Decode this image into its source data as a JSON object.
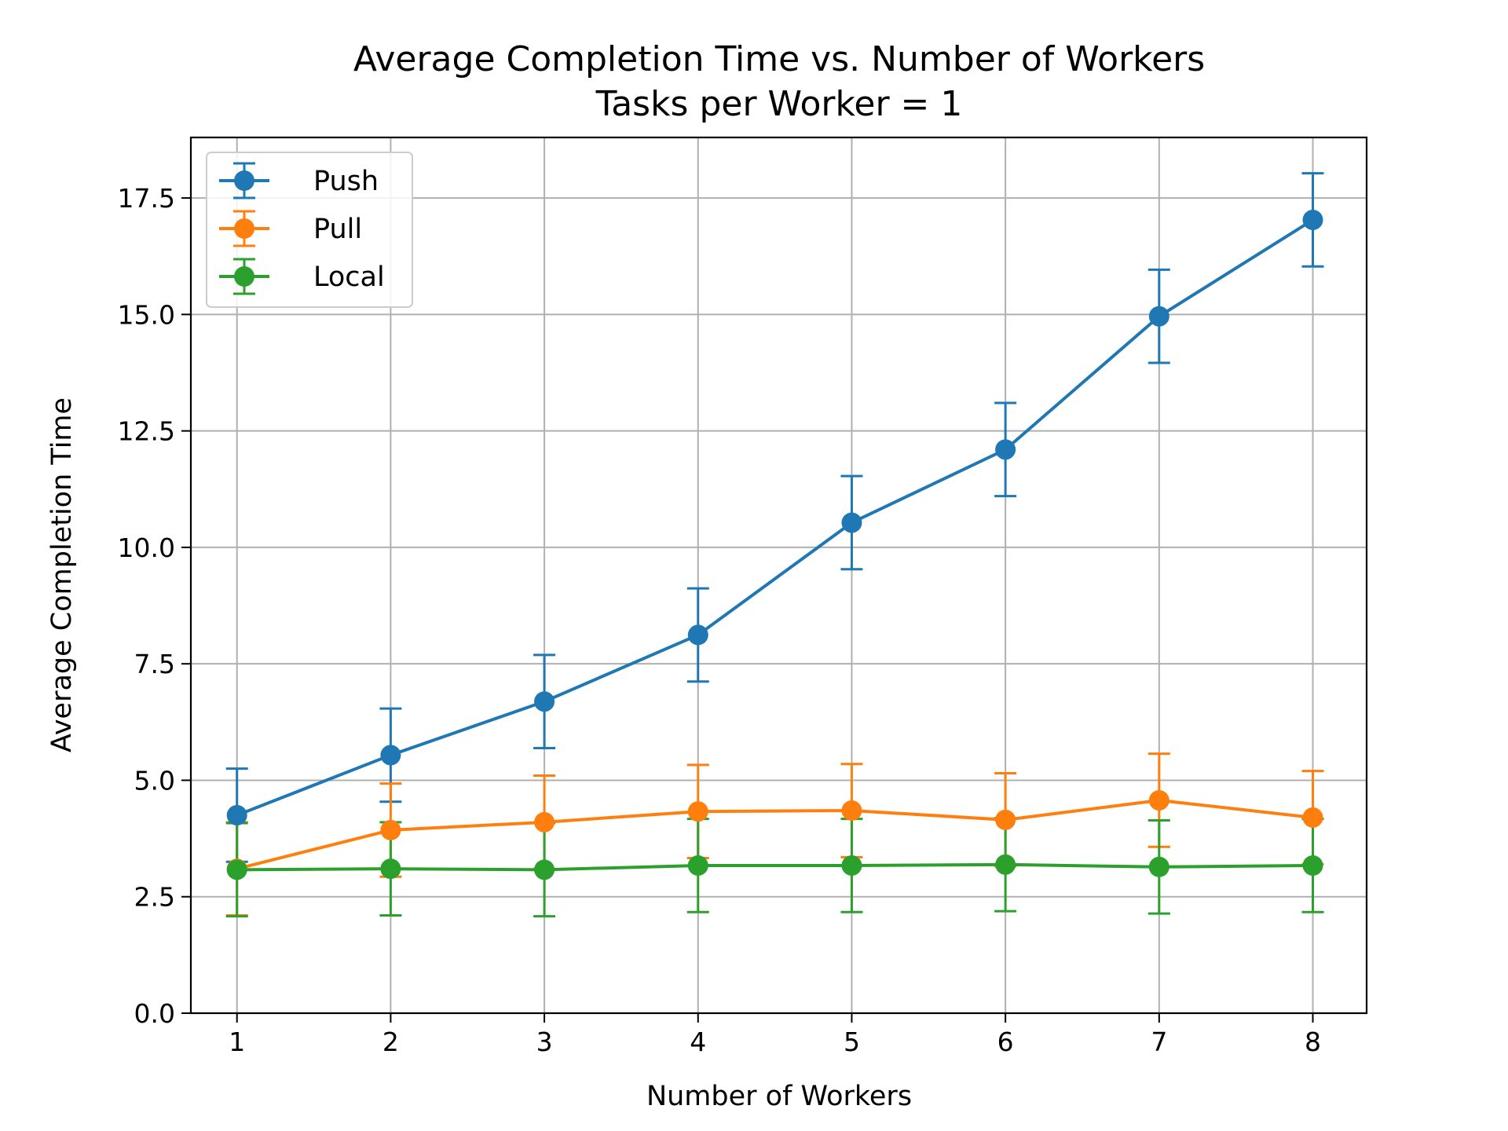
{
  "chart_data": {
    "type": "line",
    "title": "Average Completion Time vs. Number of Workers",
    "subtitle": "Tasks per Worker = 1",
    "xlabel": "Number of Workers",
    "ylabel": "Average Completion Time",
    "x": [
      1,
      2,
      3,
      4,
      5,
      6,
      7,
      8
    ],
    "xlim": [
      0.7,
      8.35
    ],
    "ylim": [
      0,
      18.8
    ],
    "yticks": [
      0.0,
      2.5,
      5.0,
      7.5,
      10.0,
      12.5,
      15.0,
      17.5
    ],
    "ytick_labels": [
      "0.0",
      "2.5",
      "5.0",
      "7.5",
      "10.0",
      "12.5",
      "15.0",
      "17.5"
    ],
    "xtick_labels": [
      "1",
      "2",
      "3",
      "4",
      "5",
      "6",
      "7",
      "8"
    ],
    "grid": true,
    "legend_position": "top-left",
    "series": [
      {
        "name": "Push",
        "color": "#1f77b4",
        "values": [
          4.25,
          5.54,
          6.69,
          8.12,
          10.53,
          12.1,
          14.96,
          17.03
        ],
        "errors": [
          1.0,
          1.0,
          1.0,
          1.0,
          1.0,
          1.0,
          1.0,
          1.0
        ]
      },
      {
        "name": "Pull",
        "color": "#ff7f0e",
        "values": [
          3.1,
          3.93,
          4.1,
          4.33,
          4.35,
          4.15,
          4.57,
          4.2
        ],
        "errors": [
          1.0,
          1.0,
          1.0,
          1.0,
          1.0,
          1.0,
          1.0,
          1.0
        ]
      },
      {
        "name": "Local",
        "color": "#2ca02c",
        "values": [
          3.08,
          3.1,
          3.08,
          3.17,
          3.17,
          3.19,
          3.14,
          3.17
        ],
        "errors": [
          1.0,
          1.0,
          1.0,
          1.0,
          1.0,
          1.0,
          1.0,
          1.0
        ]
      }
    ]
  }
}
